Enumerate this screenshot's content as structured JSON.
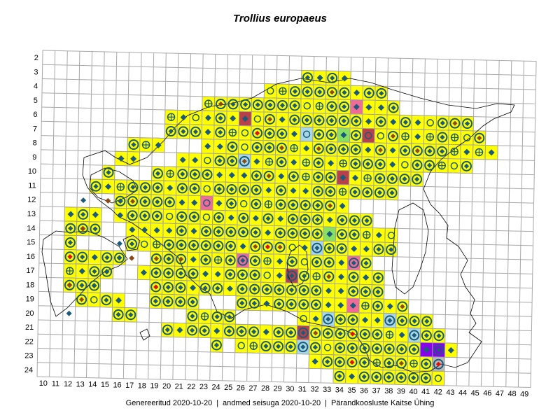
{
  "title": "Trollius europaeus",
  "footer": {
    "generated": "Genereeritud 2020-10-20",
    "data_state": "andmed seisuga 2020-10-20",
    "organization": "Pärandkoosluste Kaitse Ühing"
  },
  "grid": {
    "row_labels": [
      "2",
      "3",
      "4",
      "5",
      "6",
      "7",
      "8",
      "9",
      "10",
      "11",
      "12",
      "13",
      "14",
      "15",
      "16",
      "17",
      "18",
      "19",
      "20",
      "21",
      "22",
      "23",
      "24"
    ],
    "column_labels": [
      "10",
      "11",
      "12",
      "13",
      "14",
      "15",
      "16",
      "17",
      "18",
      "19",
      "20",
      "21",
      "22",
      "23",
      "24",
      "25",
      "26",
      "27",
      "28",
      "29",
      "30",
      "31",
      "32",
      "33",
      "34",
      "35",
      "36",
      "37",
      "38",
      "39",
      "40",
      "41",
      "42",
      "43",
      "44",
      "45",
      "46",
      "47",
      "48",
      "49"
    ]
  },
  "colors": {
    "grid_line": "#a8a8a8",
    "cell_yellow": "#ffff00",
    "cell_pink": "#f06c96",
    "cell_lightblue": "#a8d8e8",
    "cell_darkred": "#b84048",
    "cell_green": "#88e060",
    "cell_purple": "#8800ee",
    "cell_gray": "#b8b8b8",
    "marker_blue": "#1a5a7a",
    "marker_brown": "#8a4a1a",
    "marker_red": "#e01010",
    "coast": "#000000"
  }
}
